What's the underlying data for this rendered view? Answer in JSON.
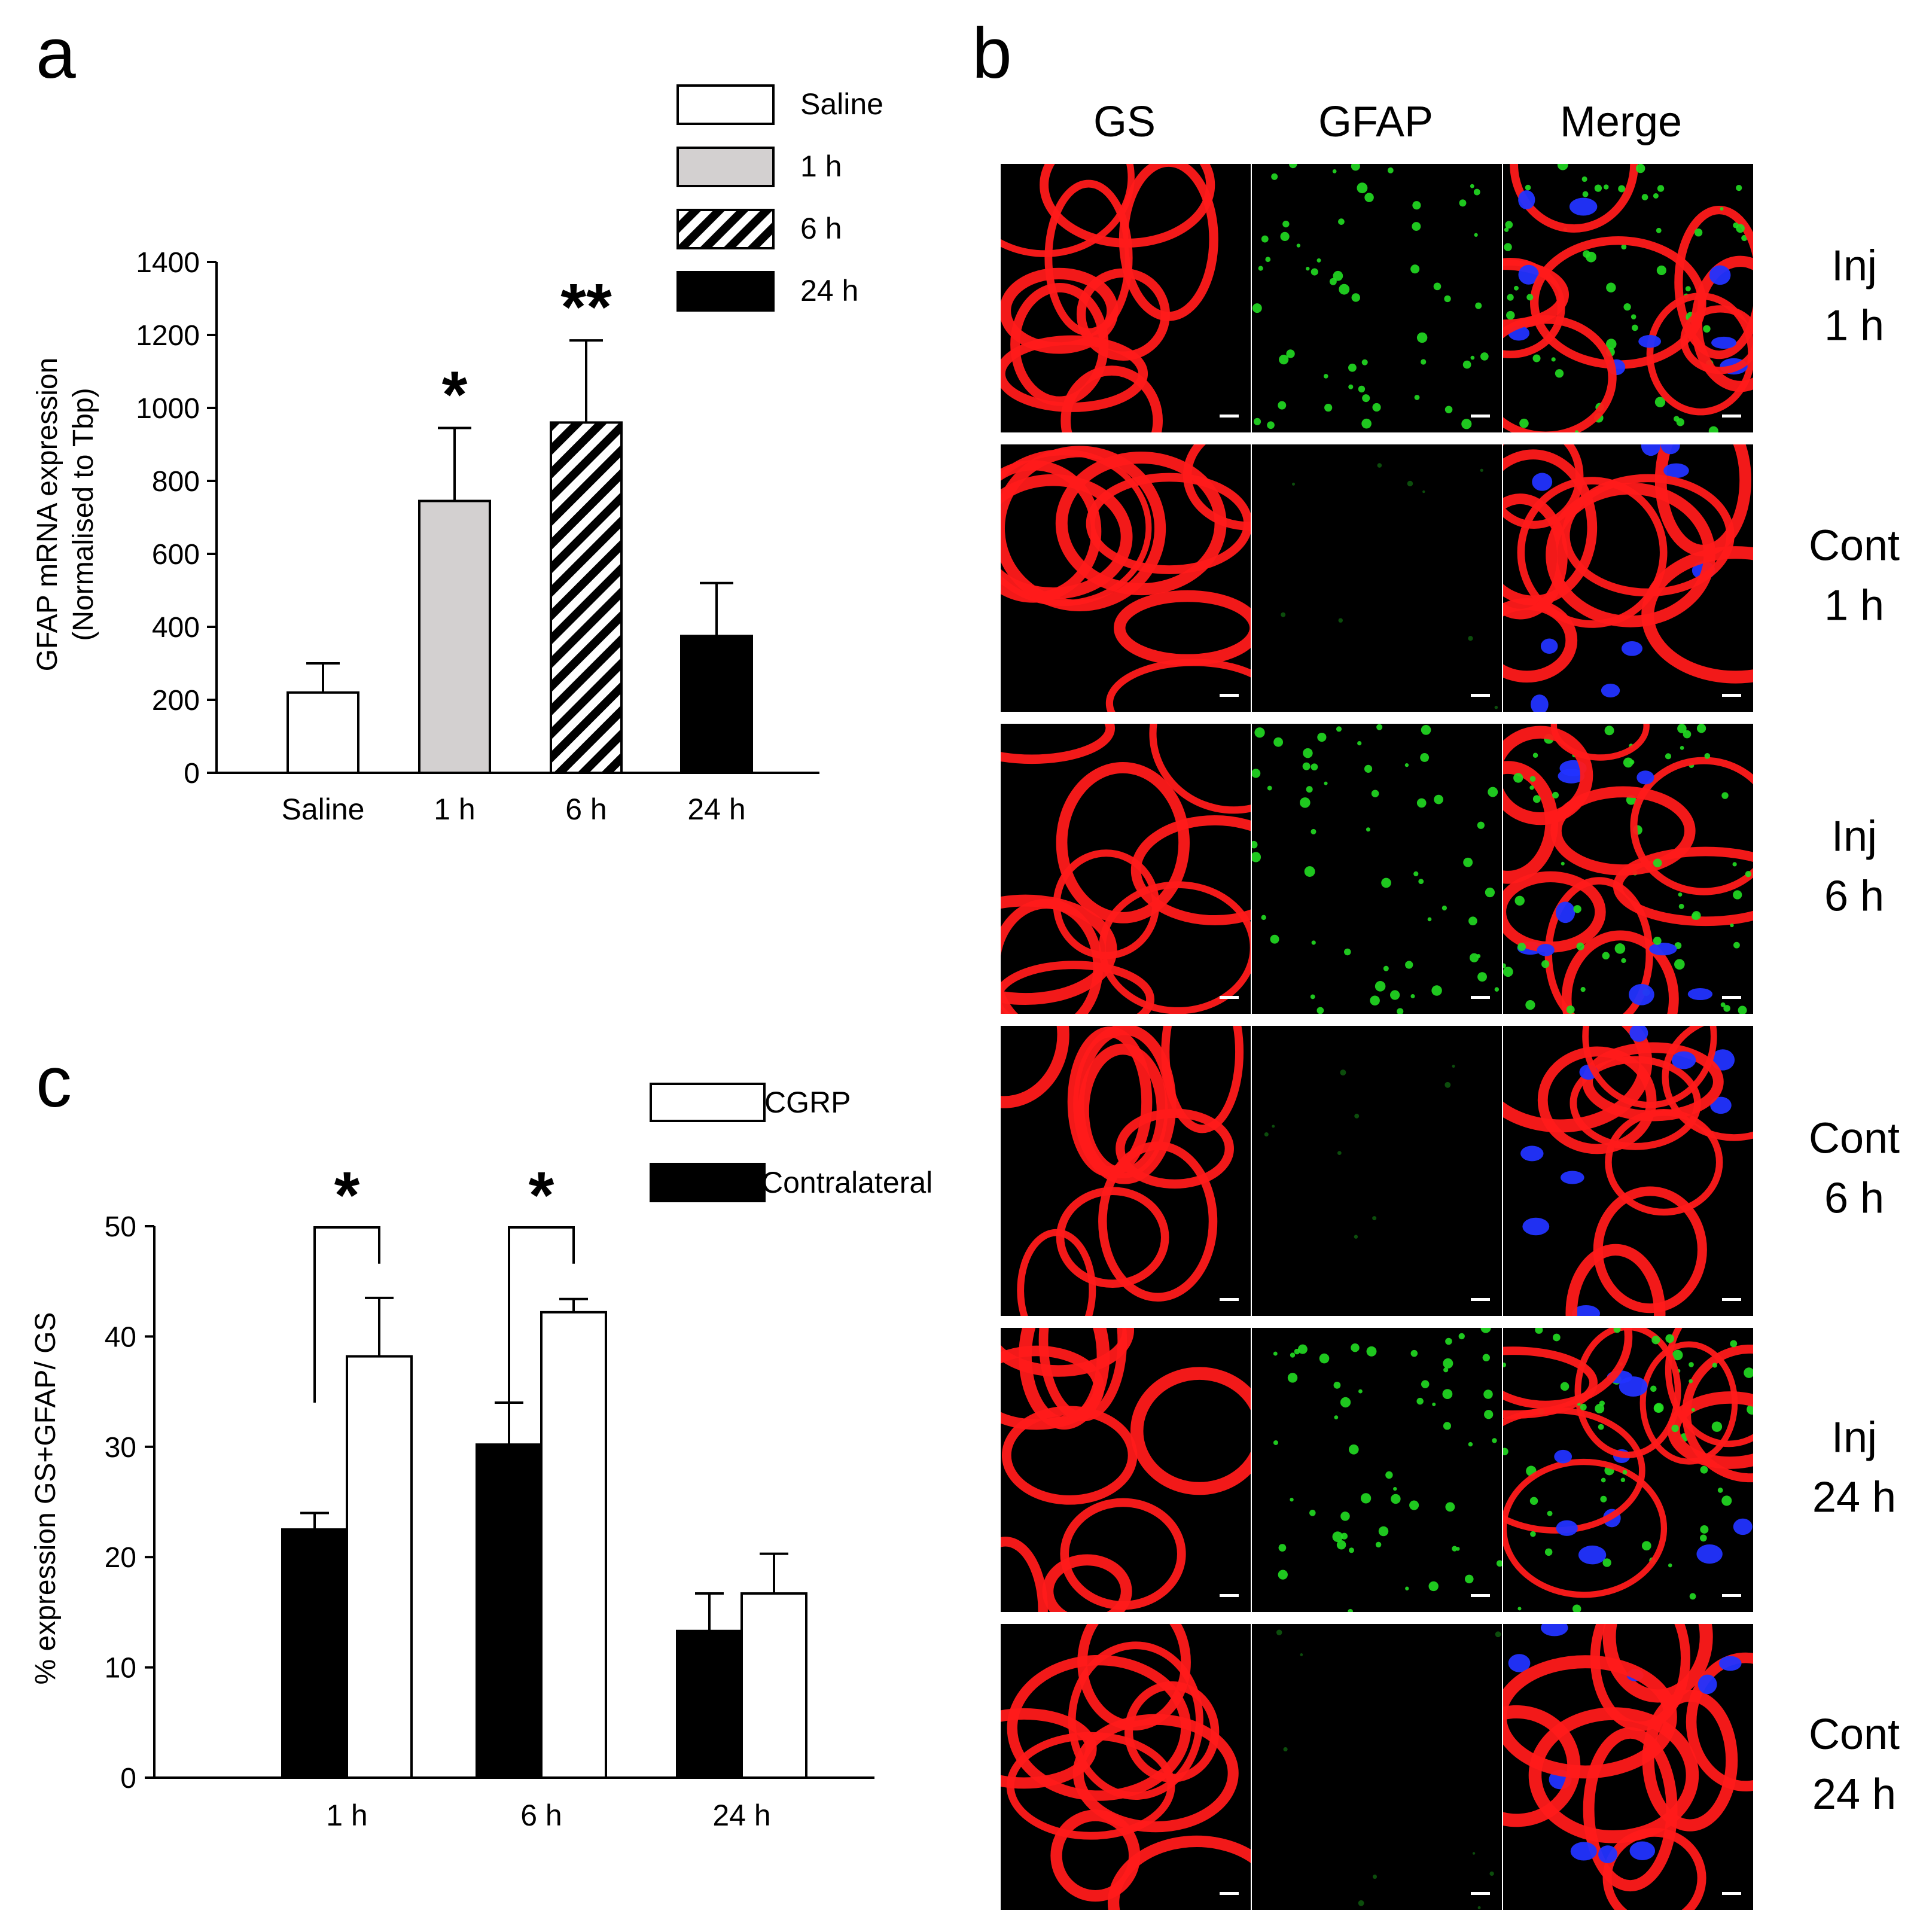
{
  "panels": {
    "a": {
      "letter": "a"
    },
    "b": {
      "letter": "b"
    },
    "c": {
      "letter": "c"
    }
  },
  "chart_data": [
    {
      "id": "a",
      "type": "bar",
      "ylabel": "GFAP mRNA expression",
      "ylabel2": "(Normalised to Tbp)",
      "ylim": [
        0,
        1400
      ],
      "yticks": [
        0,
        200,
        400,
        600,
        800,
        1000,
        1200,
        1400
      ],
      "categories": [
        "Saline",
        "1 h",
        "6 h",
        "24 h"
      ],
      "values": [
        220,
        745,
        960,
        375
      ],
      "errors": [
        80,
        200,
        225,
        145
      ],
      "significance": [
        "",
        "*",
        "**",
        ""
      ],
      "legend": {
        "placement": "top-right",
        "entries": [
          "Saline",
          "1 h",
          "6 h",
          "24 h"
        ]
      },
      "fills": [
        "#ffffff",
        "#d3d0d0",
        "hatch",
        "#000000"
      ]
    },
    {
      "id": "c",
      "type": "bar",
      "ylabel": "% expression GS+GFAP/ GS",
      "ylim": [
        0,
        50
      ],
      "yticks": [
        0,
        10,
        20,
        30,
        40,
        50
      ],
      "categories": [
        "1 h",
        "6 h",
        "24 h"
      ],
      "series": [
        {
          "name": "Contralateral",
          "values": [
            22.5,
            30.2,
            13.3
          ],
          "errors": [
            1.5,
            3.8,
            3.4
          ],
          "color": "#000000"
        },
        {
          "name": "CGRP",
          "values": [
            38.2,
            42.2,
            16.7
          ],
          "errors": [
            5.3,
            1.2,
            3.6
          ],
          "color": "#ffffff"
        }
      ],
      "significance": [
        "*",
        "*",
        ""
      ],
      "legend": {
        "placement": "top-right",
        "entries": [
          "CGRP",
          "Contralateral"
        ]
      }
    }
  ],
  "micrographs": {
    "column_headers": [
      "GS",
      "GFAP",
      "Merge"
    ],
    "rows": [
      {
        "line1": "Inj",
        "line2": "1 h"
      },
      {
        "line1": "Cont",
        "line2": "1 h"
      },
      {
        "line1": "Inj",
        "line2": "6 h"
      },
      {
        "line1": "Cont",
        "line2": "6 h"
      },
      {
        "line1": "Inj",
        "line2": "24 h"
      },
      {
        "line1": "Cont",
        "line2": "24 h"
      }
    ],
    "channel_colors": {
      "GS": "#ff1a1a",
      "GFAP": "#22dd22",
      "nuclei": "#2233ff"
    }
  }
}
